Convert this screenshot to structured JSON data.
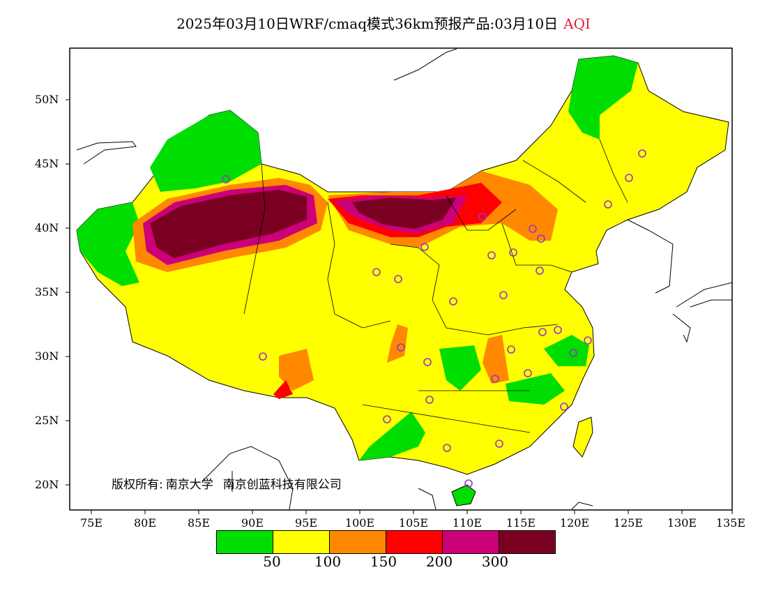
{
  "title": {
    "main": "2025年03月10日WRF/cmaq模式36km预报产品:03月10日",
    "variable": "AQI"
  },
  "axes": {
    "lat_ticks": [
      "50N",
      "45N",
      "40N",
      "35N",
      "30N",
      "25N",
      "20N"
    ],
    "lon_ticks": [
      "75E",
      "80E",
      "85E",
      "90E",
      "95E",
      "100E",
      "105E",
      "110E",
      "115E",
      "120E",
      "125E",
      "130E",
      "135E"
    ]
  },
  "credit": {
    "label": "版权所有:",
    "org1": "南京大学",
    "org2": "南京创蓝科技有限公司"
  },
  "legend": {
    "colors": [
      "#00dd00",
      "#ffff00",
      "#ff8800",
      "#ff0000",
      "#cc0077",
      "#7a0022"
    ],
    "labels": [
      "50",
      "100",
      "150",
      "200",
      "300"
    ]
  },
  "colors": {
    "good": "#00dd00",
    "moderate": "#ffff00",
    "usg": "#ff8800",
    "unhealthy": "#ff0000",
    "very_unhealthy": "#cc0077",
    "hazardous": "#7a0022",
    "station_marker": "#9933cc"
  }
}
